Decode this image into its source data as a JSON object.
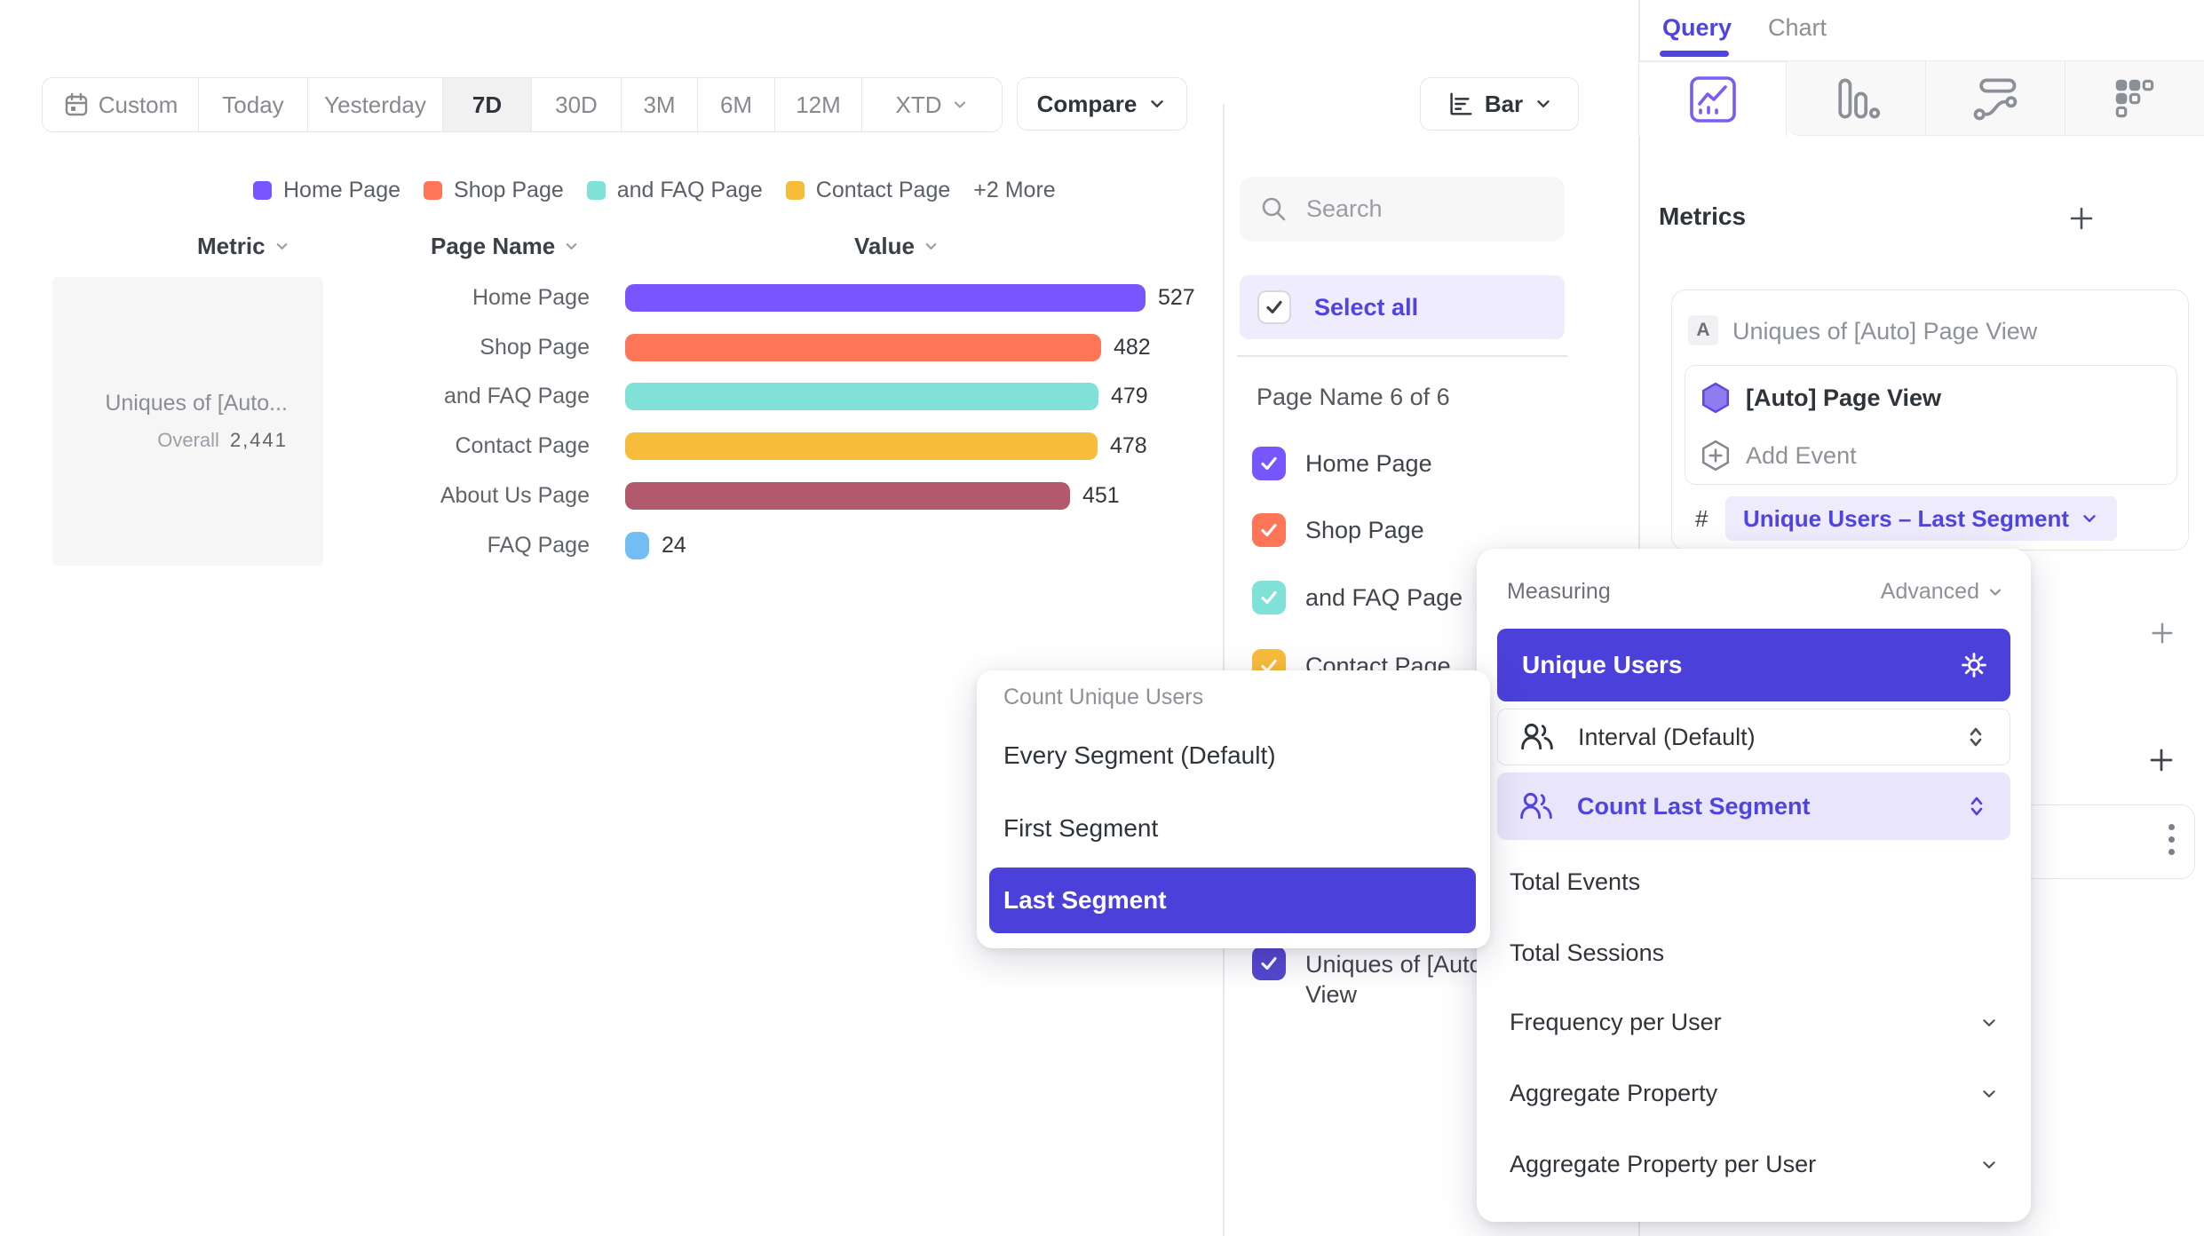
{
  "accent": "#4f44e0",
  "toolbar": {
    "date_ranges": [
      "Custom",
      "Today",
      "Yesterday",
      "7D",
      "30D",
      "3M",
      "6M",
      "12M",
      "XTD"
    ],
    "active_range": "7D",
    "compare_label": "Compare",
    "chart_type_label": "Bar"
  },
  "legend": {
    "items": [
      {
        "label": "Home Page",
        "color": "#7856FF"
      },
      {
        "label": "Shop Page",
        "color": "#FF7557"
      },
      {
        "label": "and FAQ Page",
        "color": "#80E1D9"
      },
      {
        "label": "Contact Page",
        "color": "#F8BC3B"
      }
    ],
    "more_label": "+2 More"
  },
  "chart_data": {
    "type": "bar",
    "orientation": "horizontal",
    "headers": {
      "metric": "Metric",
      "category": "Page Name",
      "value": "Value"
    },
    "metric_truncated": "Uniques of [Auto...",
    "overall_label": "Overall",
    "overall_value": "2,441",
    "categories": [
      "Home Page",
      "Shop Page",
      "and FAQ Page",
      "Contact Page",
      "About Us Page",
      "FAQ Page"
    ],
    "values": [
      527,
      482,
      479,
      478,
      451,
      24
    ],
    "colors": [
      "#7856FF",
      "#FF7557",
      "#80E1D9",
      "#F8BC3B",
      "#B2596E",
      "#72BEF4"
    ],
    "xlim": [
      0,
      527
    ],
    "legend_position": "top"
  },
  "filter_panel": {
    "search_placeholder": "Search",
    "select_all_label": "Select all",
    "group_label": "Page Name 6 of 6",
    "items": [
      {
        "label": "Home Page",
        "color": "#7856FF",
        "checked": true
      },
      {
        "label": "Shop Page",
        "color": "#FF7557",
        "checked": true
      },
      {
        "label": "and FAQ Page",
        "color": "#80E1D9",
        "checked": true
      },
      {
        "label": "Contact Page",
        "color": "#F8BC3B",
        "checked": true
      },
      {
        "label": "Uniques of [Auto] Page View",
        "color": "#5347D0",
        "checked": true
      }
    ]
  },
  "query_panel": {
    "tabs": [
      {
        "label": "Query",
        "active": true
      },
      {
        "label": "Chart",
        "active": false
      }
    ],
    "report_tabs": [
      "insights-chart",
      "funnel",
      "flows",
      "retention"
    ],
    "metrics_heading": "Metrics",
    "metric_card": {
      "badge": "A",
      "title": "Uniques of [Auto] Page View",
      "event_name": "[Auto] Page View",
      "add_event_label": "Add Event",
      "hash_symbol": "#",
      "aggregation_label": "Unique Users – Last Segment"
    }
  },
  "measuring_menu": {
    "title": "Measuring",
    "advanced_label": "Advanced",
    "selected": "Unique Users",
    "interval_label": "Interval (Default)",
    "count_segment_label": "Count Last Segment",
    "items": [
      "Total Events",
      "Total Sessions"
    ],
    "expandable_items": [
      "Frequency per User",
      "Aggregate Property",
      "Aggregate Property per User"
    ]
  },
  "segment_menu": {
    "title": "Count Unique Users",
    "options": [
      "Every Segment (Default)",
      "First Segment",
      "Last Segment"
    ],
    "selected": "Last Segment"
  }
}
